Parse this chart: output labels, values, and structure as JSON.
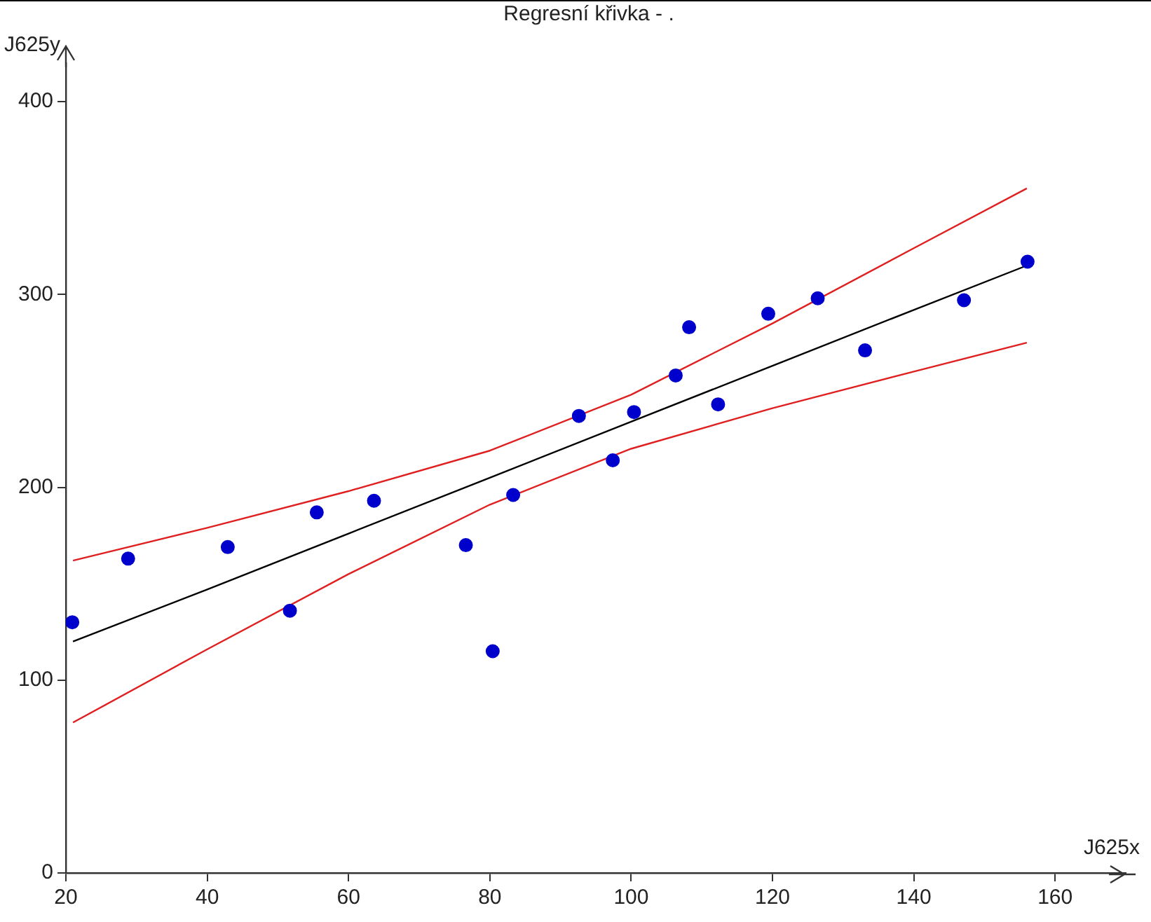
{
  "chart_data": {
    "type": "scatter",
    "title": "Regresní křivka - .",
    "xlabel": "J625x",
    "ylabel": "J625y",
    "xlim": [
      20,
      170
    ],
    "ylim": [
      0,
      420
    ],
    "xticks": [
      20,
      40,
      60,
      80,
      100,
      120,
      140,
      160
    ],
    "yticks": [
      0,
      100,
      200,
      300,
      400
    ],
    "series": [
      {
        "marker": "circle",
        "color": "#0000cc",
        "x": [
          20.9,
          28.8,
          42.9,
          51.7,
          55.5,
          63.6,
          76.6,
          80.4,
          83.3,
          92.6,
          97.4,
          100.4,
          106.3,
          108.2,
          112.3,
          119.4,
          126.4,
          133.1,
          147.1,
          156.1
        ],
        "values": [
          130,
          163,
          169,
          136,
          187,
          193,
          170,
          115,
          196,
          237,
          214,
          239,
          258,
          283,
          243,
          290,
          298,
          271,
          297,
          317
        ]
      },
      {
        "type": "line",
        "marker": "none",
        "color": "#000000",
        "x": [
          21,
          40,
          60,
          80,
          100,
          120,
          140,
          156
        ],
        "values": [
          120,
          147,
          176,
          205,
          234,
          263,
          292,
          315
        ]
      },
      {
        "type": "line",
        "marker": "none",
        "color": "#e02020",
        "x": [
          21,
          40,
          60,
          80,
          100,
          120,
          140,
          156
        ],
        "values": [
          162,
          179,
          198,
          219,
          248,
          285,
          324,
          355
        ]
      },
      {
        "type": "line",
        "marker": "none",
        "color": "#e02020",
        "x": [
          21,
          40,
          60,
          80,
          100,
          120,
          140,
          156
        ],
        "values": [
          78,
          116,
          155,
          191,
          220,
          241,
          260,
          275
        ]
      }
    ]
  }
}
